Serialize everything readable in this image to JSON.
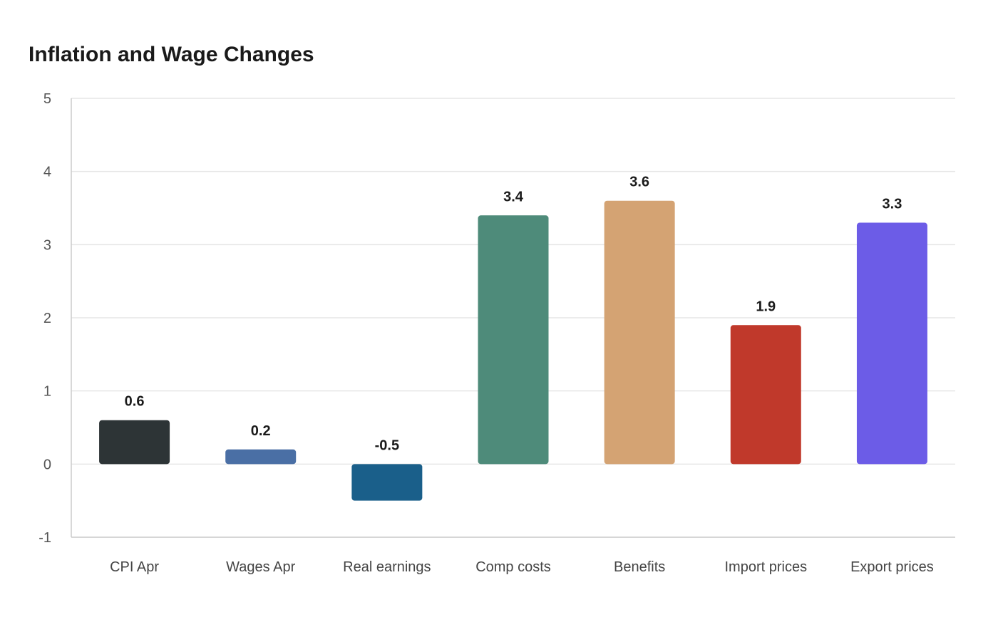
{
  "chart_data": {
    "type": "bar",
    "title": "Inflation and Wage Changes",
    "xlabel": "",
    "ylabel": "",
    "categories": [
      "CPI Apr",
      "Wages Apr",
      "Real earnings",
      "Comp costs",
      "Benefits",
      "Import prices",
      "Export prices"
    ],
    "values": [
      0.6,
      0.2,
      -0.5,
      3.4,
      3.6,
      1.9,
      3.3
    ],
    "value_labels": [
      "0.6",
      "0.2",
      "-0.5",
      "3.4",
      "3.6",
      "1.9",
      "3.3"
    ],
    "colors": [
      "#2d3436",
      "#4a6fa5",
      "#1a5f8a",
      "#4e8b7a",
      "#d4a373",
      "#c0392b",
      "#6c5ce7"
    ],
    "ylim": [
      -1,
      5
    ],
    "yticks": [
      -1,
      0,
      1,
      2,
      3,
      4,
      5
    ],
    "grid": true,
    "legend": "none"
  }
}
